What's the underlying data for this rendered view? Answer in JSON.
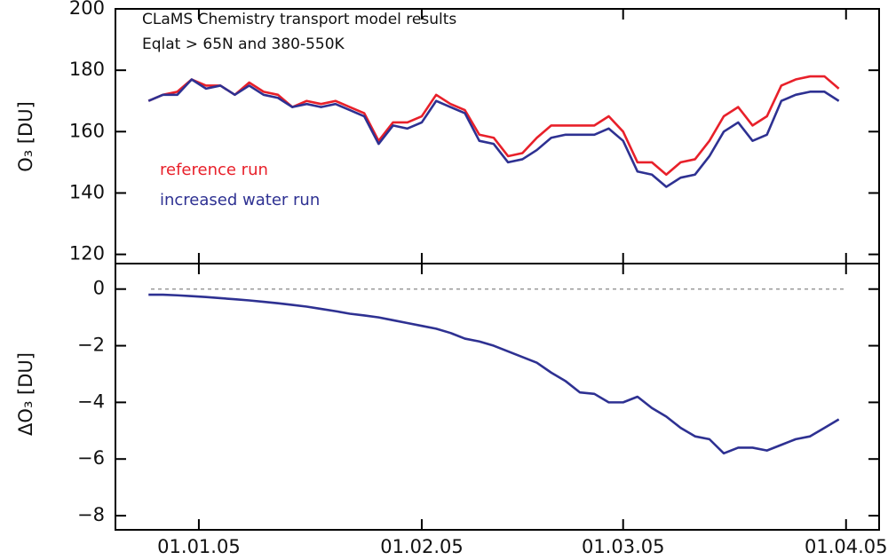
{
  "chart_data": [
    {
      "type": "line",
      "annotations": [
        "CLaMS Chemistry transport model results",
        "Eqlat > 65N and 380-550K"
      ],
      "y_label": "O₃ [DU]",
      "x": [
        -7,
        -5,
        -3,
        -1,
        1,
        3,
        5,
        7,
        9,
        11,
        13,
        15,
        17,
        19,
        21,
        23,
        25,
        27,
        29,
        31,
        33,
        35,
        37,
        39,
        41,
        43,
        45,
        47,
        49,
        51,
        53,
        55,
        57,
        59,
        61,
        63,
        65,
        67,
        69,
        71,
        73,
        75,
        77,
        79,
        81,
        83,
        85,
        87,
        89
      ],
      "xlim": [
        -11.6,
        94.6
      ],
      "ylim": [
        117,
        200
      ],
      "yticks": [
        120,
        140,
        160,
        180,
        200
      ],
      "legend": "inside-left",
      "series": [
        {
          "name": "reference run",
          "color": "#e8202a",
          "values": [
            170,
            172,
            173,
            177,
            175,
            175,
            172,
            176,
            173,
            172,
            168,
            170,
            169,
            170,
            168,
            166,
            157,
            163,
            163,
            165,
            172,
            169,
            167,
            159,
            158,
            152,
            153,
            158,
            162,
            162,
            162,
            162,
            165,
            160,
            150,
            150,
            146,
            150,
            151,
            157,
            165,
            168,
            162,
            165,
            175,
            177,
            178,
            178,
            174
          ]
        },
        {
          "name": "increased water run",
          "color": "#2e3192",
          "values": [
            170,
            172,
            172,
            177,
            174,
            175,
            172,
            175,
            172,
            171,
            168,
            169,
            168,
            169,
            167,
            165,
            156,
            162,
            161,
            163,
            170,
            168,
            166,
            157,
            156,
            150,
            151,
            154,
            158,
            159,
            159,
            159,
            161,
            157,
            147,
            146,
            142,
            145,
            146,
            152,
            160,
            163,
            157,
            159,
            170,
            172,
            173,
            173,
            170
          ]
        }
      ]
    },
    {
      "type": "line",
      "y_label": "ΔO₃ [DU]",
      "x": [
        -7,
        -5,
        -3,
        -1,
        1,
        3,
        5,
        7,
        9,
        11,
        13,
        15,
        17,
        19,
        21,
        23,
        25,
        27,
        29,
        31,
        33,
        35,
        37,
        39,
        41,
        43,
        45,
        47,
        49,
        51,
        53,
        55,
        57,
        59,
        61,
        63,
        65,
        67,
        69,
        71,
        73,
        75,
        77,
        79,
        81,
        83,
        85,
        87,
        89
      ],
      "xlim": [
        -11.6,
        94.6
      ],
      "xticks": [
        {
          "value": 0,
          "label": "01.01.05"
        },
        {
          "value": 31,
          "label": "01.02.05"
        },
        {
          "value": 59,
          "label": "01.03.05"
        },
        {
          "value": 90,
          "label": "01.04.05"
        }
      ],
      "ylim": [
        -8.5,
        0.9
      ],
      "yticks": [
        {
          "value": -8,
          "label": "−8"
        },
        {
          "value": -6,
          "label": "−6"
        },
        {
          "value": -4,
          "label": "−4"
        },
        {
          "value": -2,
          "label": "−2"
        },
        0
      ],
      "hline": 0,
      "series": [
        {
          "color": "#2e3192",
          "values": [
            -0.2,
            -0.2,
            -0.22,
            -0.25,
            -0.28,
            -0.32,
            -0.36,
            -0.4,
            -0.45,
            -0.5,
            -0.56,
            -0.62,
            -0.7,
            -0.78,
            -0.87,
            -0.93,
            -1.0,
            -1.1,
            -1.2,
            -1.3,
            -1.4,
            -1.55,
            -1.75,
            -1.85,
            -2.0,
            -2.2,
            -2.4,
            -2.6,
            -2.95,
            -3.25,
            -3.65,
            -3.7,
            -4.0,
            -4.0,
            -3.8,
            -4.2,
            -4.5,
            -4.9,
            -5.2,
            -5.3,
            -5.8,
            -5.6,
            -5.6,
            -5.7,
            -5.5,
            -5.3,
            -5.2,
            -4.9,
            -4.6
          ]
        }
      ]
    }
  ]
}
